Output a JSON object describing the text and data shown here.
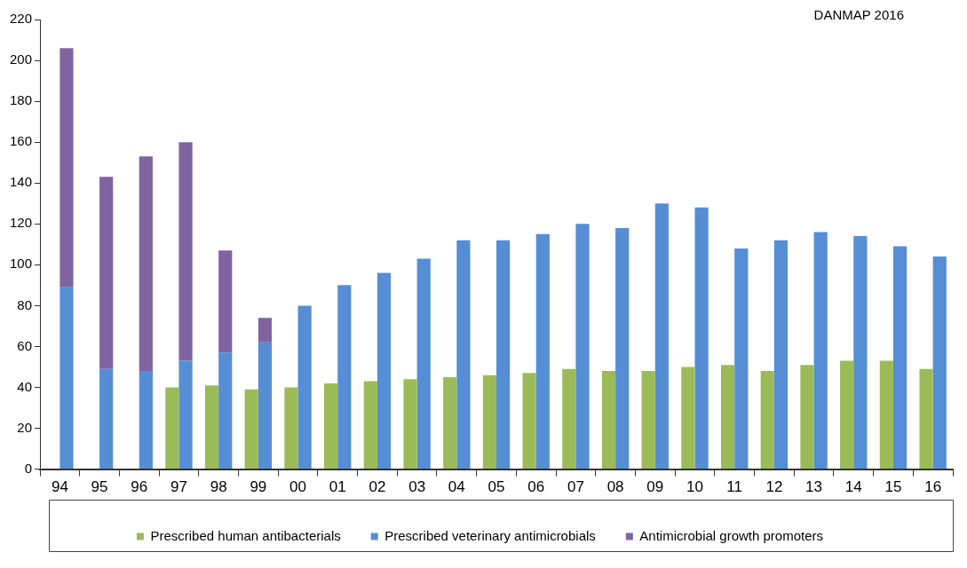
{
  "chart_data": {
    "type": "bar",
    "legend": "bottom",
    "grid": false,
    "annotations": [
      "DANMAP 2016"
    ],
    "categories": [
      "94",
      "95",
      "96",
      "97",
      "98",
      "99",
      "00",
      "01",
      "02",
      "03",
      "04",
      "05",
      "06",
      "07",
      "08",
      "09",
      "10",
      "11",
      "12",
      "13",
      "14",
      "15",
      "16"
    ],
    "ylim": [
      0,
      220
    ],
    "yticks": [
      0,
      20,
      40,
      60,
      80,
      100,
      120,
      140,
      160,
      180,
      200,
      220
    ],
    "series": [
      {
        "name": "Prescribed human antibacterials",
        "color": "#9bbb59",
        "values": [
          null,
          null,
          null,
          40,
          41,
          39,
          40,
          42,
          43,
          44,
          45,
          46,
          47,
          49,
          48,
          48,
          50,
          51,
          48,
          51,
          53,
          53,
          49
        ]
      },
      {
        "name": "Prescribed veterinary antimicrobials",
        "color": "#558ed5",
        "values": [
          89,
          49,
          48,
          53,
          57,
          62,
          80,
          90,
          96,
          103,
          112,
          112,
          115,
          120,
          118,
          130,
          128,
          108,
          112,
          116,
          114,
          109,
          104
        ]
      },
      {
        "name": "Antimicrobial growth promoters",
        "color": "#8064a2",
        "base": [
          89,
          49,
          48,
          53,
          57,
          62,
          null,
          null,
          null,
          null,
          null,
          null,
          null,
          null,
          null,
          null,
          null,
          null,
          null,
          null,
          null,
          null,
          null
        ],
        "values": [
          117,
          94,
          105,
          107,
          50,
          12,
          null,
          null,
          null,
          null,
          null,
          null,
          null,
          null,
          null,
          null,
          null,
          null,
          null,
          null,
          null,
          null,
          null
        ]
      }
    ]
  }
}
